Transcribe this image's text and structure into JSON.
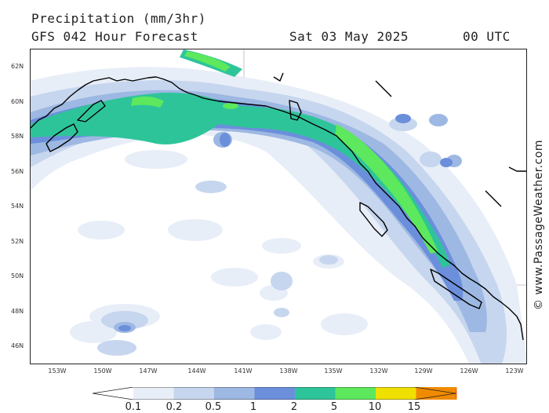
{
  "header": {
    "title": "Precipitation (mm/3hr)",
    "subtitle": "GFS 042 Hour Forecast",
    "date": "Sat 03 May 2025",
    "time": "00 UTC"
  },
  "credit": "© www.PassageWeather.com",
  "map": {
    "lat_labels": [
      "62N",
      "60N",
      "58N",
      "56N",
      "54N",
      "52N",
      "50N",
      "48N",
      "46N"
    ],
    "lon_labels": [
      "153W",
      "150W",
      "147W",
      "144W",
      "141W",
      "138W",
      "135W",
      "132W",
      "129W",
      "126W",
      "123W"
    ]
  },
  "legend": {
    "labels": [
      "0.1",
      "0.2",
      "0.5",
      "1",
      "2",
      "5",
      "10",
      "15"
    ],
    "colors": [
      "#e8eef8",
      "#c6d6ee",
      "#9db8e2",
      "#6c8fdc",
      "#2ec49a",
      "#5de85d",
      "#f0e000",
      "#f08a00",
      "#e83030"
    ]
  }
}
